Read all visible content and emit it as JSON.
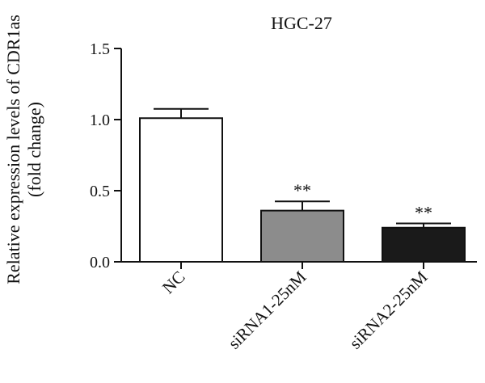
{
  "chart_data": {
    "type": "bar",
    "title": "HGC-27",
    "ylabel_line1": "Relative expression levels of CDR1as",
    "ylabel_line2": "(fold change)",
    "xlabel": "",
    "categories": [
      "NC",
      "siRNA1-25nM",
      "siRNA2-25nM"
    ],
    "values": [
      1.01,
      0.36,
      0.24
    ],
    "errors": [
      0.065,
      0.065,
      0.03
    ],
    "significance": [
      "",
      "**",
      "**"
    ],
    "bar_colors": [
      "#ffffff",
      "#8c8c8c",
      "#1a1a1a"
    ],
    "ylim": [
      0,
      1.5
    ],
    "yticks": [
      "0.0",
      "0.5",
      "1.0",
      "1.5"
    ],
    "ytick_values": [
      0,
      0.5,
      1.0,
      1.5
    ],
    "grid": false,
    "legend": "none"
  }
}
